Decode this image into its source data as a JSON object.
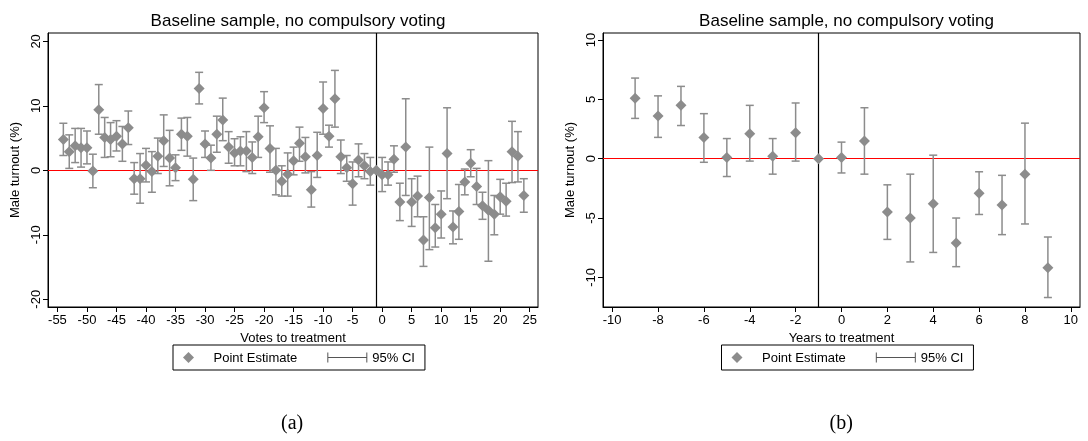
{
  "chart_data": [
    {
      "type": "scatter",
      "title": "Baseline sample, no compulsory voting",
      "xlabel": "Votes to treatment",
      "ylabel": "Male turnout (%)",
      "marker": "diamond",
      "legend": "bottom",
      "grid": false,
      "x": [
        -54,
        -53,
        -52,
        -51,
        -50,
        -49,
        -48,
        -47,
        -46,
        -45,
        -44,
        -43,
        -42,
        -41,
        -40,
        -39,
        -38,
        -37,
        -36,
        -35,
        -34,
        -33,
        -32,
        -31,
        -30,
        -29,
        -28,
        -27,
        -26,
        -25,
        -24,
        -23,
        -22,
        -21,
        -20,
        -19,
        -18,
        -17,
        -16,
        -15,
        -14,
        -13,
        -12,
        -11,
        -10,
        -9,
        -8,
        -7,
        -6,
        -5,
        -4,
        -3,
        -2,
        -1,
        0,
        1,
        2,
        3,
        4,
        5,
        6,
        7,
        8,
        9,
        10,
        11,
        12,
        13,
        14,
        15,
        16,
        17,
        18,
        19,
        20,
        21,
        22,
        23,
        24
      ],
      "series": [
        {
          "name": "Point Estimate",
          "color": "#8c8c8c",
          "values": [
            4.8,
            2.9,
            3.8,
            3.5,
            3.5,
            -0.1,
            9.4,
            5.1,
            4.8,
            5.3,
            4.1,
            6.6,
            -1.3,
            -1.3,
            0.8,
            -0.2,
            2.2,
            4.6,
            1.9,
            0.4,
            5.6,
            5.3,
            -1.4,
            12.7,
            4.1,
            1.9,
            5.6,
            7.8,
            3.6,
            2.7,
            3.0,
            3.0,
            2.0,
            5.2,
            9.7,
            3.4,
            0.0,
            -1.7,
            -0.6,
            1.5,
            4.2,
            2.1,
            -3.0,
            2.3,
            9.6,
            5.3,
            11.1,
            2.1,
            0.4,
            -2.1,
            1.6,
            0.7,
            -0.2,
            0,
            -0.7,
            -0.7,
            1.7,
            -4.9,
            3.6,
            -4.9,
            -4.0,
            -10.8,
            -4.2,
            -8.9,
            -6.8,
            2.6,
            -8.8,
            -6.4,
            -1.8,
            1.1,
            -2.5,
            -5.5,
            -6.2,
            -6.8,
            -4.1,
            -4.8,
            2.9,
            2.2,
            -3.9
          ],
          "errors": [
            [
              2.3,
              7.3
            ],
            [
              0.3,
              5.5
            ],
            [
              1.2,
              6.5
            ],
            [
              0.5,
              6.5
            ],
            [
              1.0,
              6.1
            ],
            [
              -2.7,
              2.5
            ],
            [
              5.6,
              13.3
            ],
            [
              2.0,
              8.2
            ],
            [
              2.1,
              7.4
            ],
            [
              3.0,
              7.7
            ],
            [
              1.4,
              6.8
            ],
            [
              4.0,
              9.2
            ],
            [
              -3.7,
              1.2
            ],
            [
              -5.1,
              2.6
            ],
            [
              -1.8,
              3.4
            ],
            [
              -3.4,
              2.9
            ],
            [
              -0.5,
              5.0
            ],
            [
              0.6,
              8.6
            ],
            [
              -2.4,
              6.2
            ],
            [
              -1.6,
              2.4
            ],
            [
              3.1,
              8.1
            ],
            [
              2.2,
              8.2
            ],
            [
              -4.7,
              1.9
            ],
            [
              10.3,
              15.2
            ],
            [
              2.0,
              6.1
            ],
            [
              0.0,
              3.9
            ],
            [
              2.8,
              8.4
            ],
            [
              4.6,
              11.2
            ],
            [
              1.1,
              6.0
            ],
            [
              0.7,
              4.9
            ],
            [
              0.7,
              5.2
            ],
            [
              -0.2,
              6.0
            ],
            [
              -0.5,
              4.4
            ],
            [
              2.0,
              8.4
            ],
            [
              7.4,
              12.2
            ],
            [
              -0.3,
              6.9
            ],
            [
              -3.8,
              3.4
            ],
            [
              -4.0,
              0.7
            ],
            [
              -4.0,
              2.7
            ],
            [
              -0.7,
              3.6
            ],
            [
              1.4,
              6.7
            ],
            [
              -0.4,
              5.1
            ],
            [
              -5.7,
              -0.2
            ],
            [
              -1.1,
              5.9
            ],
            [
              5.6,
              13.7
            ],
            [
              3.6,
              7.0
            ],
            [
              6.7,
              15.5
            ],
            [
              -0.5,
              4.7
            ],
            [
              -1.7,
              2.3
            ],
            [
              -5.4,
              1.3
            ],
            [
              -1.0,
              4.1
            ],
            [
              -1.3,
              2.6
            ],
            [
              -2.3,
              2.0
            ],
            null,
            [
              -3.3,
              2.0
            ],
            [
              -2.3,
              1.3
            ],
            [
              -0.3,
              3.8
            ],
            [
              -7.8,
              -2.0
            ],
            [
              -3.9,
              11.1
            ],
            [
              -8.7,
              -1.3
            ],
            [
              -7.2,
              -0.9
            ],
            [
              -14.9,
              -7.2
            ],
            [
              -12.3,
              3.6
            ],
            [
              -11.9,
              -5.3
            ],
            [
              -10.5,
              -3.2
            ],
            [
              -4.4,
              9.7
            ],
            [
              -11.4,
              -6.3
            ],
            [
              -10.7,
              -2.2
            ],
            [
              -3.8,
              0.2
            ],
            [
              -1.0,
              3.2
            ],
            [
              -5.3,
              0.3
            ],
            [
              -7.6,
              -3.4
            ],
            [
              -14.1,
              1.5
            ],
            [
              -10.0,
              -3.9
            ],
            [
              -6.8,
              -1.4
            ],
            [
              -7.1,
              -2.0
            ],
            [
              -1.9,
              7.6
            ],
            [
              -1.8,
              6.0
            ],
            [
              -6.5,
              -1.3
            ]
          ]
        }
      ],
      "xlim": [
        -56.6,
        26.4
      ],
      "xticks": [
        -55,
        -50,
        -45,
        -40,
        -35,
        -30,
        -25,
        -20,
        -15,
        -10,
        -5,
        0,
        5,
        10,
        15,
        20,
        25
      ],
      "ylim": [
        -21.2,
        21.3
      ],
      "yticks": [
        -20,
        -10,
        0,
        10,
        20
      ],
      "ref_lines": [
        {
          "axis": "y",
          "value": 0,
          "color": "#ff0000"
        },
        {
          "axis": "x",
          "value": -1,
          "color": "#000000"
        }
      ],
      "annotations": [
        "95% CI",
        "(a)"
      ]
    },
    {
      "type": "scatter",
      "title": "Baseline sample, no compulsory voting",
      "xlabel": "Years to treatment",
      "ylabel": "Male turnout (%)",
      "marker": "diamond",
      "legend": "bottom",
      "grid": false,
      "x": [
        -9,
        -8,
        -7,
        -6,
        -5,
        -4,
        -3,
        -2,
        -1,
        0,
        1,
        2,
        3,
        4,
        5,
        6,
        7,
        8,
        9
      ],
      "series": [
        {
          "name": "Point Estimate",
          "color": "#8c8c8c",
          "values": [
            5.1,
            3.6,
            4.5,
            1.8,
            0.1,
            2.1,
            0.2,
            2.2,
            0,
            0.1,
            1.5,
            -4.5,
            -5.0,
            -3.8,
            -7.1,
            -2.9,
            -3.9,
            -1.3,
            -9.2
          ],
          "errors": [
            [
              3.4,
              6.8
            ],
            [
              1.8,
              5.3
            ],
            [
              2.8,
              6.1
            ],
            [
              -0.3,
              3.8
            ],
            [
              -1.5,
              1.7
            ],
            [
              -0.2,
              4.5
            ],
            [
              -1.3,
              1.7
            ],
            [
              -0.2,
              4.7
            ],
            null,
            [
              -1.2,
              1.4
            ],
            [
              -1.3,
              4.3
            ],
            [
              -6.8,
              -2.2
            ],
            [
              -8.7,
              -1.3
            ],
            [
              -7.9,
              0.3
            ],
            [
              -9.1,
              -5.0
            ],
            [
              -4.7,
              -1.1
            ],
            [
              -6.4,
              -1.4
            ],
            [
              -5.5,
              3.0
            ],
            [
              -11.7,
              -6.6
            ]
          ]
        }
      ],
      "xlim": [
        -10.4,
        10.4
      ],
      "xticks": [
        -10,
        -8,
        -6,
        -4,
        -2,
        0,
        2,
        4,
        6,
        8,
        10
      ],
      "ylim": [
        -12.5,
        10.6
      ],
      "yticks": [
        -10,
        -5,
        0,
        5,
        10
      ],
      "ref_lines": [
        {
          "axis": "y",
          "value": 0,
          "color": "#ff0000"
        },
        {
          "axis": "x",
          "value": -1,
          "color": "#000000"
        }
      ],
      "annotations": [
        "95% CI",
        "(b)"
      ]
    }
  ]
}
